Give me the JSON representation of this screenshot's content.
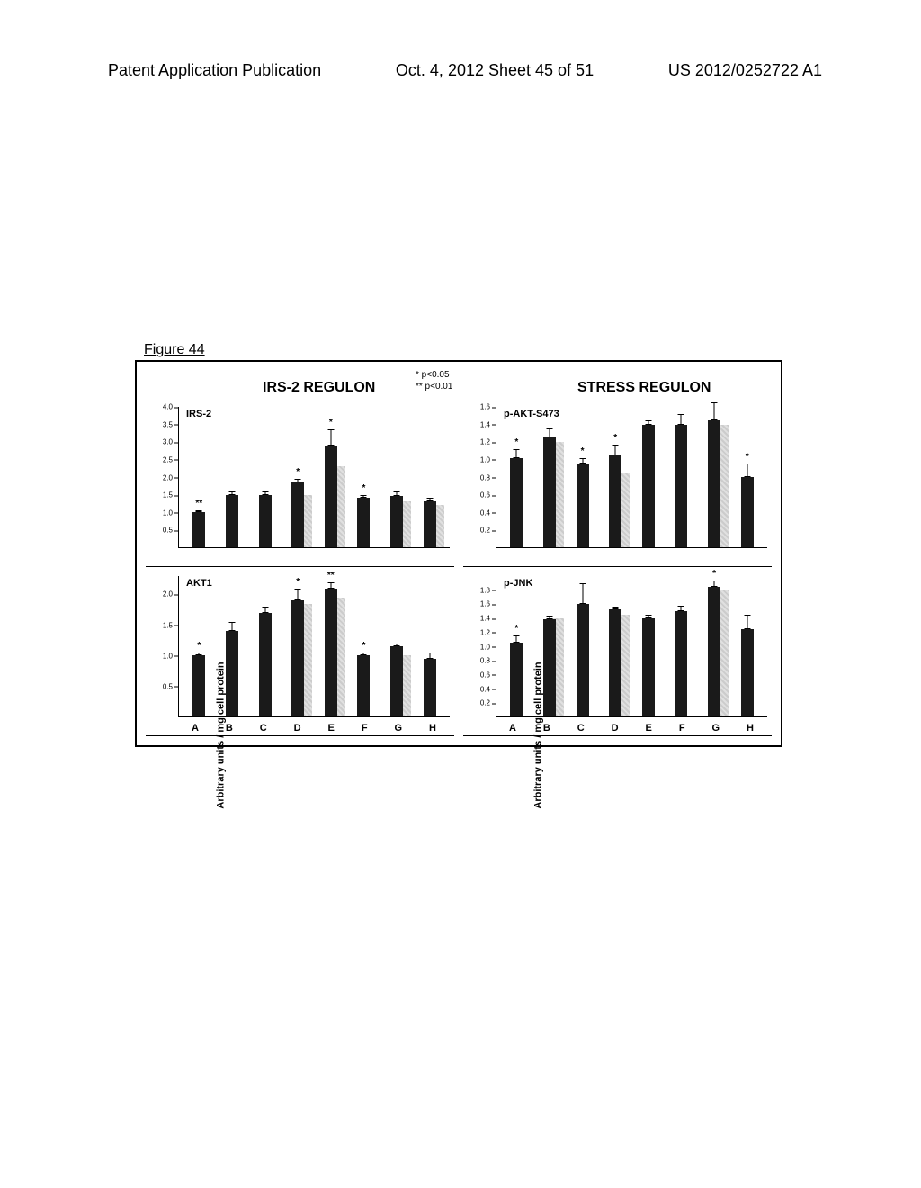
{
  "header": {
    "left": "Patent Application Publication",
    "center": "Oct. 4, 2012  Sheet 45 of 51",
    "right": "US 2012/0252722 A1"
  },
  "figure_label": "Figure 44",
  "column_titles": {
    "left": "IRS-2 REGULON",
    "right": "STRESS REGULON"
  },
  "legend": {
    "line1": "* p<0.05",
    "line2": "** p<0.01"
  },
  "yaxis_label": "Arbitrary units / mg cell protein",
  "categories": [
    "A",
    "B",
    "C",
    "D",
    "E",
    "F",
    "G",
    "H"
  ],
  "bar_color": "#1a1a1a",
  "gray_bar_color": "#bbbbbb",
  "panels": {
    "irs2": {
      "title": "IRS-2",
      "ylim": [
        0,
        4.0
      ],
      "yticks": [
        0.5,
        1.0,
        1.5,
        2.0,
        2.5,
        3.0,
        3.5,
        4.0
      ],
      "values": [
        1.0,
        1.5,
        1.5,
        1.85,
        2.9,
        1.4,
        1.45,
        1.3
      ],
      "errors": [
        0.05,
        0.1,
        0.1,
        0.1,
        0.45,
        0.1,
        0.15,
        0.1
      ],
      "sig": [
        "**",
        "",
        "",
        "*",
        "*",
        "*",
        "",
        ""
      ],
      "gray_values": [
        null,
        null,
        null,
        1.5,
        2.3,
        null,
        1.3,
        1.2
      ]
    },
    "akt1": {
      "title": "AKT1",
      "ylim": [
        0,
        2.3
      ],
      "yticks": [
        0.5,
        1.0,
        1.5,
        2.0
      ],
      "values": [
        1.0,
        1.4,
        1.7,
        1.9,
        2.1,
        1.0,
        1.15,
        0.95
      ],
      "errors": [
        0.05,
        0.15,
        0.1,
        0.2,
        0.1,
        0.05,
        0.05,
        0.1
      ],
      "sig": [
        "*",
        "",
        "",
        "*",
        "**",
        "*",
        "",
        ""
      ],
      "gray_values": [
        null,
        null,
        null,
        1.85,
        1.95,
        null,
        1.0,
        null
      ]
    },
    "pakt": {
      "title": "p-AKT-S473",
      "ylim": [
        0,
        1.6
      ],
      "yticks": [
        0.2,
        0.4,
        0.6,
        0.8,
        1.0,
        1.2,
        1.4,
        1.6
      ],
      "values": [
        1.02,
        1.25,
        0.95,
        1.05,
        1.4,
        1.4,
        1.45,
        0.8
      ],
      "errors": [
        0.1,
        0.1,
        0.07,
        0.12,
        0.05,
        0.12,
        0.2,
        0.15
      ],
      "sig": [
        "*",
        "",
        "*",
        "*",
        "",
        "",
        "",
        "*"
      ],
      "gray_values": [
        null,
        1.2,
        null,
        0.85,
        null,
        null,
        1.4,
        null
      ]
    },
    "pjnk": {
      "title": "p-JNK",
      "ylim": [
        0,
        2.0
      ],
      "yticks": [
        0.2,
        0.4,
        0.6,
        0.8,
        1.0,
        1.2,
        1.4,
        1.6,
        1.8
      ],
      "values": [
        1.05,
        1.38,
        1.6,
        1.52,
        1.4,
        1.5,
        1.85,
        1.25
      ],
      "errors": [
        0.1,
        0.05,
        0.3,
        0.05,
        0.05,
        0.08,
        0.08,
        0.2
      ],
      "sig": [
        "*",
        "",
        "",
        "",
        "",
        "",
        "*",
        ""
      ],
      "gray_values": [
        null,
        1.4,
        null,
        1.45,
        null,
        null,
        1.8,
        null
      ]
    }
  }
}
